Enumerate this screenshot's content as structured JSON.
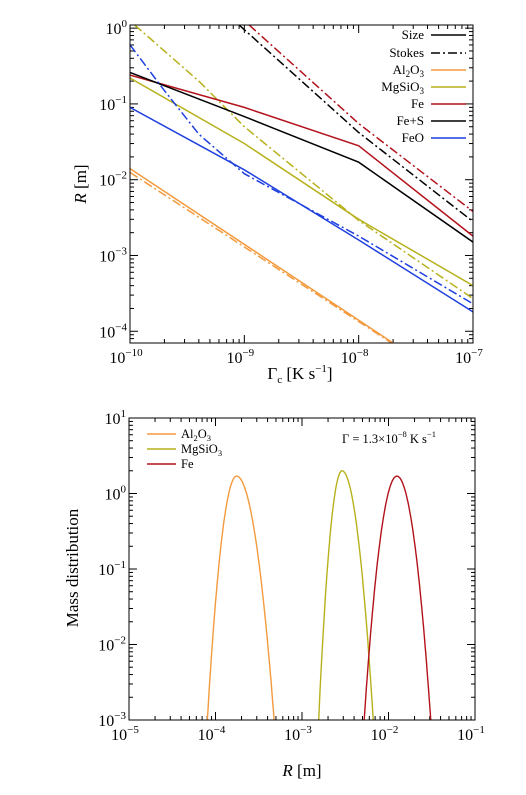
{
  "chart_data": [
    {
      "type": "line",
      "xlabel": "Γc [K s−1]",
      "ylabel": "R [m]",
      "xscale": "log",
      "yscale": "log",
      "xlim": [
        1e-10,
        1e-07
      ],
      "ylim": [
        7e-05,
        1.1
      ],
      "x_ticks": [
        "10",
        "10",
        "10",
        "10"
      ],
      "x_tick_exps": [
        "−10",
        "−9",
        "−8",
        "−7"
      ],
      "y_ticks": [
        "10",
        "10",
        "10",
        "10",
        "10"
      ],
      "y_tick_exps": [
        "−4",
        "−3",
        "−2",
        "−1",
        "0"
      ],
      "legend_position": "top-right",
      "legend": [
        {
          "label": "Size",
          "style": "solid",
          "color": "#000000"
        },
        {
          "label": "Stokes",
          "style": "dashdot",
          "color": "#000000"
        },
        {
          "label": "Al2O3",
          "style": "solid",
          "color": "#F39A3E"
        },
        {
          "label": "MgSiO3",
          "style": "solid",
          "color": "#B7B11C"
        },
        {
          "label": "Fe",
          "style": "solid",
          "color": "#B3121B"
        },
        {
          "label": "Fe+S",
          "style": "solid",
          "color": "#000000"
        },
        {
          "label": "FeO",
          "style": "solid",
          "color": "#1E3FE0"
        }
      ],
      "series": [
        {
          "material": "Al2O3",
          "kind": "size",
          "color": "#F39A3E",
          "x": [
            1e-10,
            2e-08
          ],
          "y": [
            0.014,
            7e-05
          ]
        },
        {
          "material": "Al2O3",
          "kind": "stokes",
          "color": "#F39A3E",
          "x": [
            1e-10,
            2e-08
          ],
          "y": [
            0.0125,
            6.8e-05
          ]
        },
        {
          "material": "MgSiO3",
          "kind": "size",
          "color": "#B7B11C",
          "x": [
            1e-10,
            1e-09,
            1e-08,
            1e-07
          ],
          "y": [
            0.22,
            0.03,
            0.003,
            0.0004
          ]
        },
        {
          "material": "MgSiO3",
          "kind": "stokes",
          "color": "#B7B11C",
          "x": [
            1.1e-10,
            4e-10,
            1e-09,
            1e-08,
            1e-07
          ],
          "y": [
            1.1,
            0.2,
            0.05,
            0.0029,
            0.00027
          ]
        },
        {
          "material": "Fe",
          "kind": "size",
          "color": "#B3121B",
          "x": [
            1e-10,
            1e-09,
            1e-08,
            1e-07
          ],
          "y": [
            0.24,
            0.09,
            0.028,
            0.0018
          ]
        },
        {
          "material": "Fe",
          "kind": "stokes",
          "color": "#B3121B",
          "x": [
            1.1e-09,
            1e-08,
            1e-07
          ],
          "y": [
            1.1,
            0.055,
            0.0038
          ]
        },
        {
          "material": "Fe+S",
          "kind": "size",
          "color": "#000000",
          "x": [
            1e-10,
            1e-09,
            1e-08,
            1e-07
          ],
          "y": [
            0.26,
            0.068,
            0.017,
            0.0015
          ]
        },
        {
          "material": "Fe+S",
          "kind": "stokes",
          "color": "#000000",
          "x": [
            9e-10,
            1e-08,
            1e-07
          ],
          "y": [
            1.1,
            0.042,
            0.0028
          ]
        },
        {
          "material": "FeO",
          "kind": "size",
          "color": "#1E3FE0",
          "x": [
            1e-10,
            1e-09,
            1e-08,
            1e-07
          ],
          "y": [
            0.09,
            0.0135,
            0.0016,
            0.00018
          ]
        },
        {
          "material": "FeO",
          "kind": "stokes",
          "color": "#1E3FE0",
          "x": [
            1e-10,
            2e-10,
            4e-10,
            1e-09,
            1e-08,
            1e-07
          ],
          "y": [
            0.6,
            0.15,
            0.04,
            0.012,
            0.0018,
            0.00023
          ]
        }
      ]
    },
    {
      "type": "line",
      "xlabel": "R [m]",
      "ylabel": "Mass distribution",
      "xscale": "log",
      "yscale": "log",
      "xlim": [
        1e-05,
        0.1
      ],
      "ylim": [
        0.001,
        10
      ],
      "annotation": "Γ = 1.3×10−8 K s−1",
      "x_ticks": [
        "10",
        "10",
        "10",
        "10",
        "10"
      ],
      "x_tick_exps": [
        "−5",
        "−4",
        "−3",
        "−2",
        "−1"
      ],
      "y_ticks": [
        "10",
        "10",
        "10",
        "10",
        "10"
      ],
      "y_tick_exps": [
        "−3",
        "−2",
        "−1",
        "0",
        "1"
      ],
      "legend_position": "top-left",
      "legend": [
        {
          "label": "Al2O3",
          "color": "#F39A3E"
        },
        {
          "label": "MgSiO3",
          "color": "#B7B11C"
        },
        {
          "label": "Fe",
          "color": "#B3121B"
        }
      ],
      "series": [
        {
          "name": "Al2O3",
          "color": "#F39A3E",
          "peak_R": 0.000175,
          "peak_value": 1.7,
          "support": [
            8e-05,
            0.00048
          ]
        },
        {
          "name": "MgSiO3",
          "color": "#B7B11C",
          "peak_R": 0.0029,
          "peak_value": 2.0,
          "support": [
            0.00155,
            0.0067
          ]
        },
        {
          "name": "Fe",
          "color": "#B3121B",
          "peak_R": 0.0125,
          "peak_value": 1.7,
          "support": [
            0.0052,
            0.031
          ]
        }
      ]
    }
  ]
}
